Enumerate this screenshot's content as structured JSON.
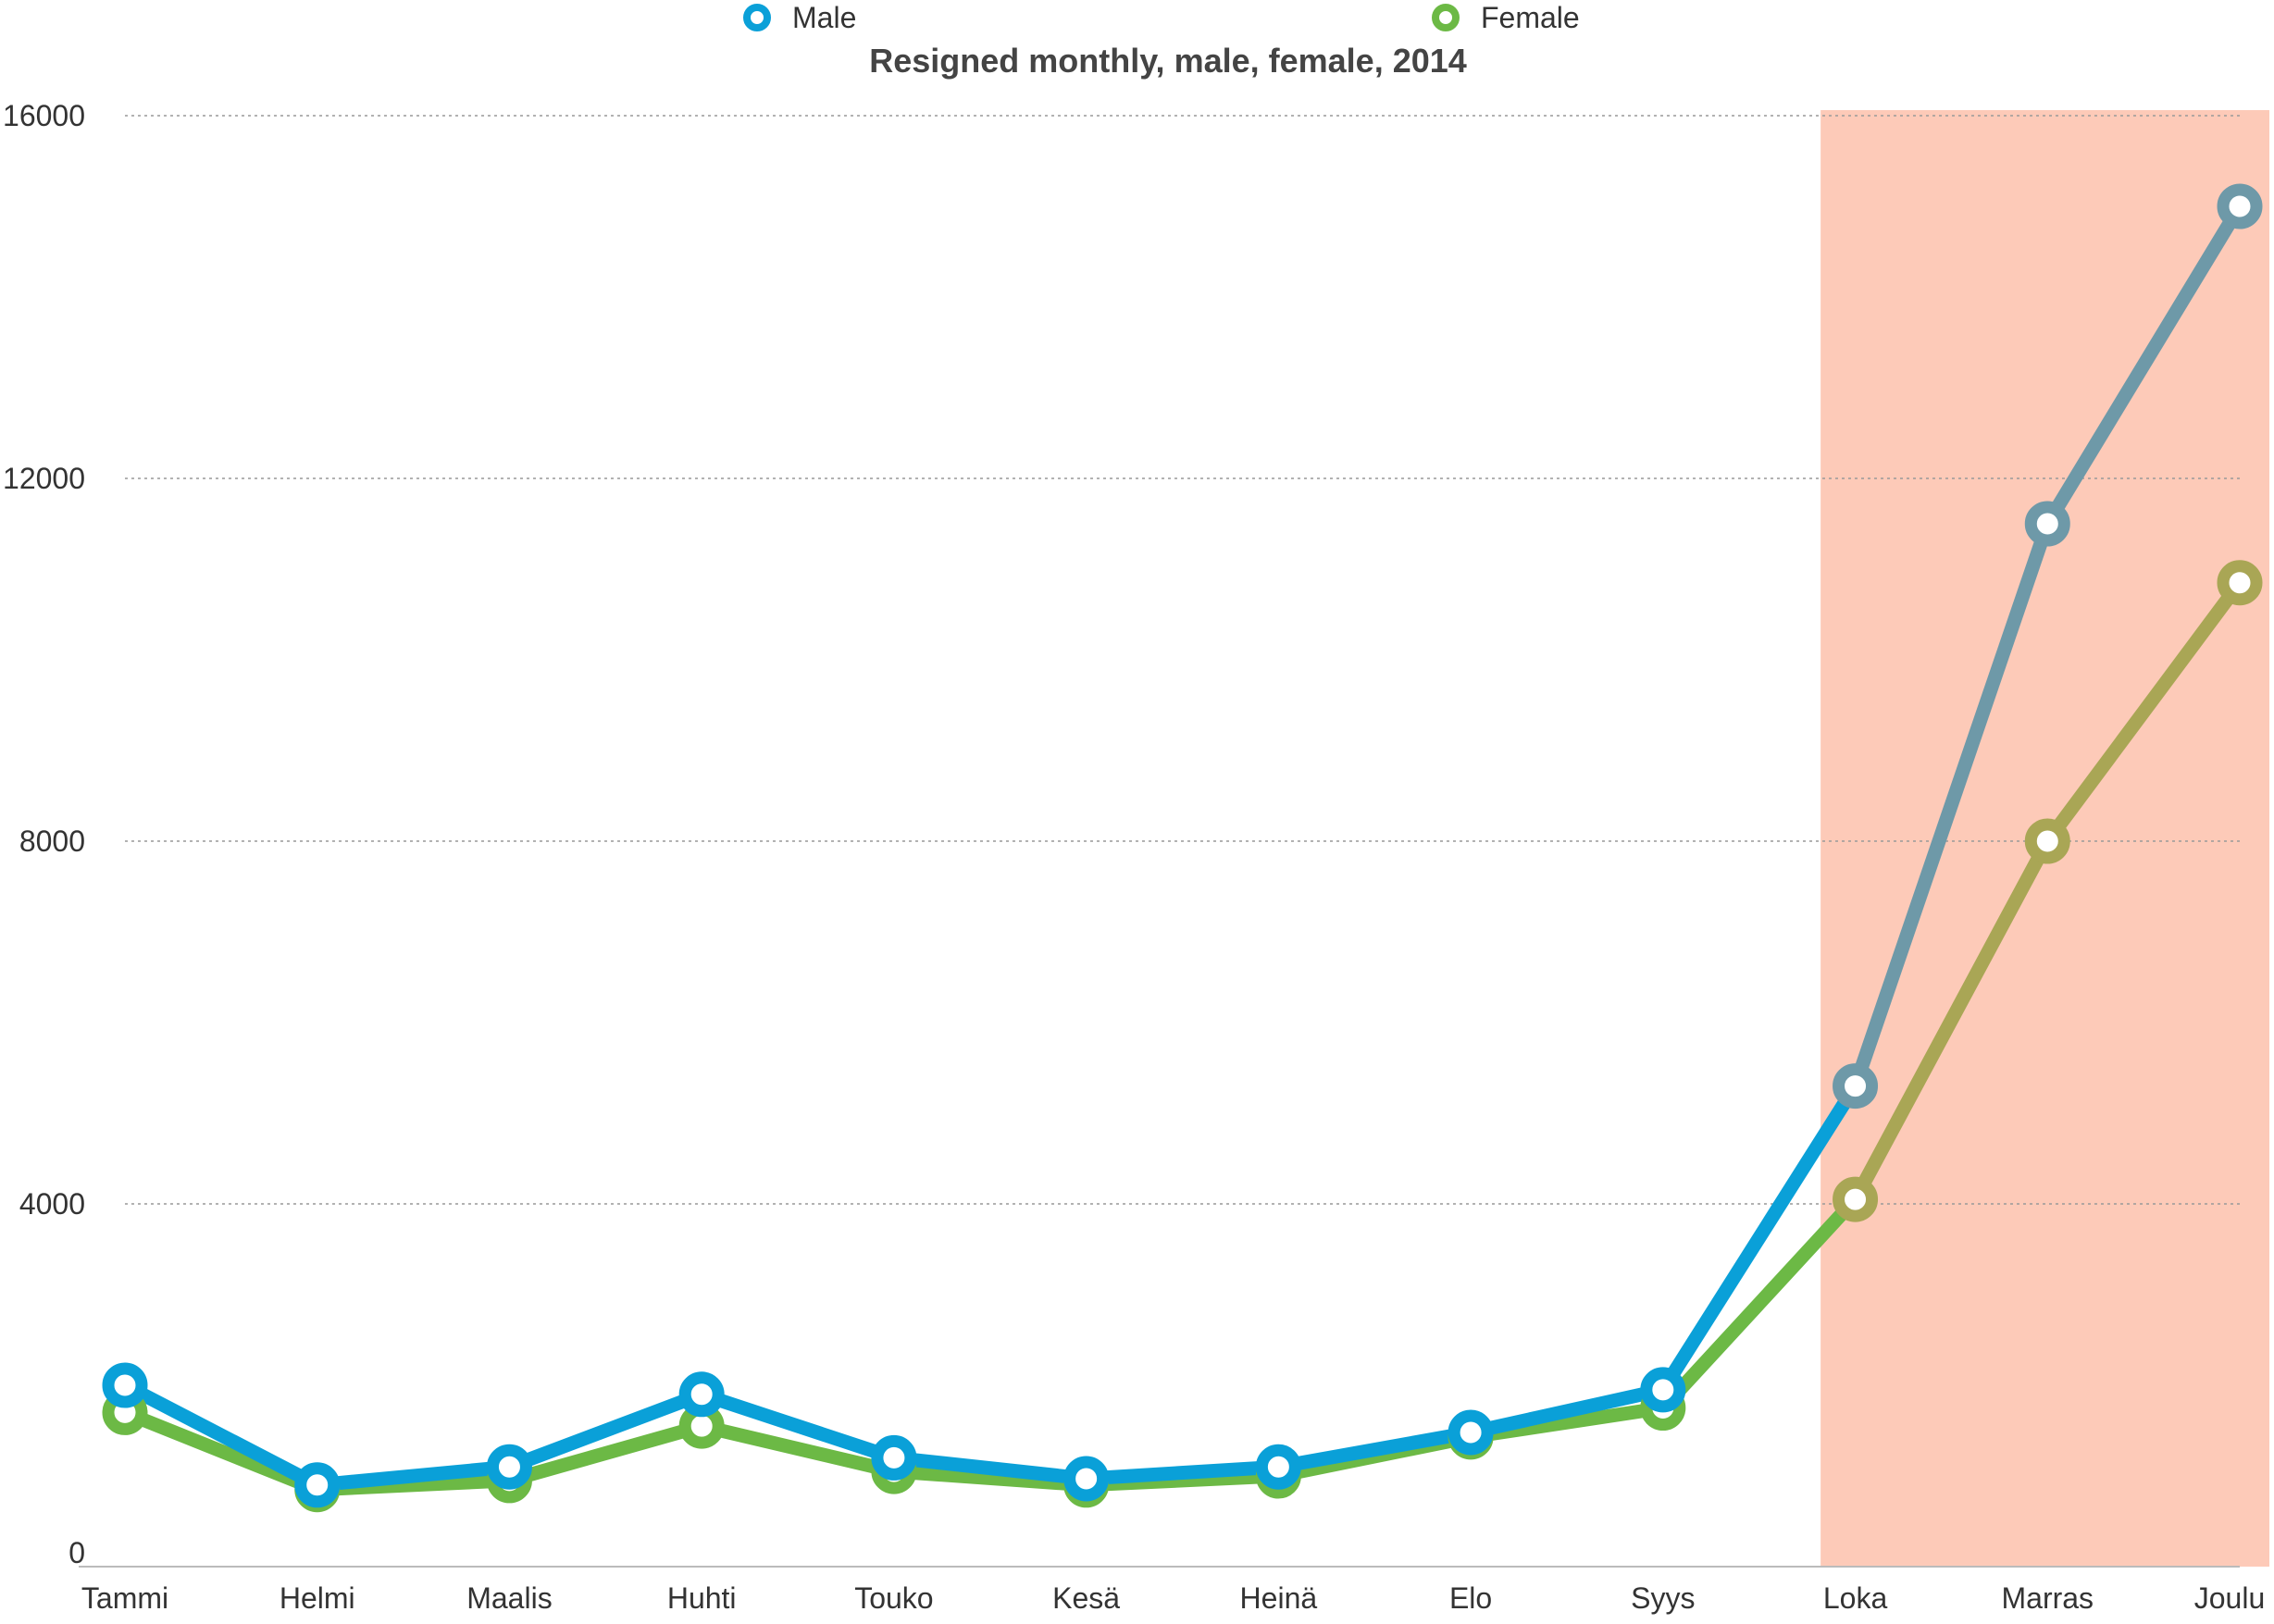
{
  "chart_data": {
    "type": "line",
    "title": "Resigned monthly, male, female, 2014",
    "xlabel": "",
    "ylabel": "",
    "categories": [
      "Tammi",
      "Helmi",
      "Maalis",
      "Huhti",
      "Touko",
      "Kesä",
      "Heinä",
      "Elo",
      "Syys",
      "Loka",
      "Marras",
      "Joulu"
    ],
    "series": [
      {
        "name": "Male",
        "color": "#0aa0d8",
        "values": [
          2000,
          900,
          1100,
          1900,
          1200,
          970,
          1100,
          1480,
          1950,
          5300,
          11500,
          15000
        ]
      },
      {
        "name": "Female",
        "color": "#6cb945",
        "values": [
          1700,
          850,
          950,
          1550,
          1050,
          900,
          1000,
          1430,
          1750,
          4050,
          8000,
          10850
        ]
      }
    ],
    "highlight": {
      "from_category": "Loka",
      "to_category": "Joulu",
      "color": "#fdcab8",
      "male_line_color": "#6e99a8",
      "female_line_color": "#a9a655"
    },
    "ylim": [
      0,
      16000
    ],
    "yticks": [
      0,
      4000,
      8000,
      12000,
      16000
    ],
    "grid": "horizontal-dotted",
    "legend_position": "top-center"
  }
}
